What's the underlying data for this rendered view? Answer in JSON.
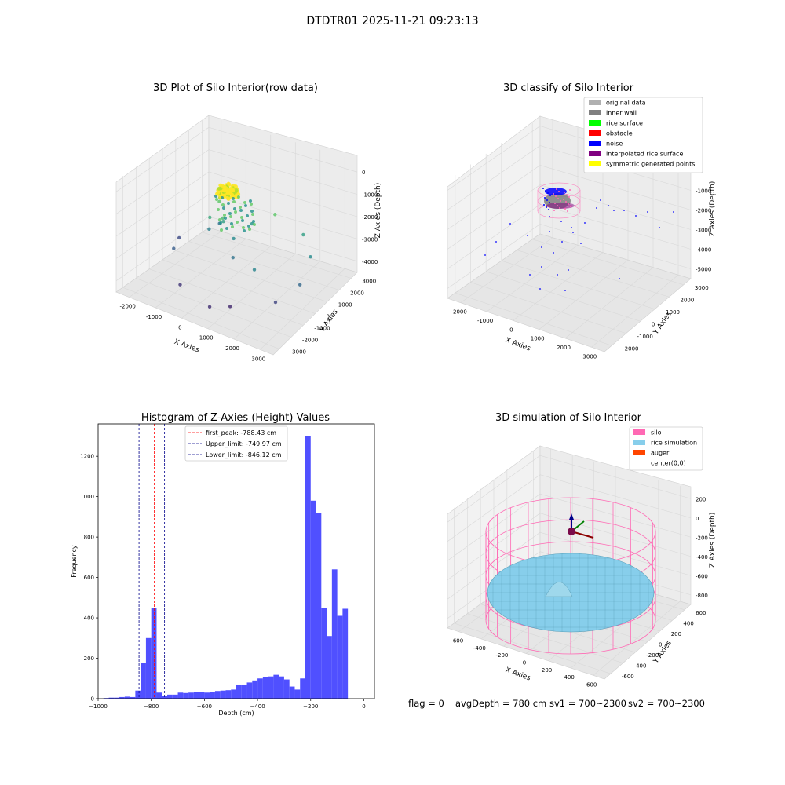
{
  "figure": {
    "suptitle": "DTDTR01 2025-11-21 09:23:13",
    "footer": {
      "flag": "flag = 0",
      "avg_depth": "avgDepth = 780 cm",
      "sv1": "sv1 = 700~2300",
      "sv2": "sv2 = 700~2300"
    }
  },
  "chart_data": [
    {
      "type": "scatter",
      "projection": "3d",
      "title": "3D Plot of Silo Interior(row data)",
      "xlabel": "X Axies",
      "ylabel": "Y Axies",
      "zlabel": "Z Axies (Depth)",
      "xticks": [
        "-2000",
        "-1000",
        "0",
        "1000",
        "2000",
        "3000"
      ],
      "yticks": [
        "-3000",
        "-2000",
        "-1000",
        "0",
        "1000",
        "2000",
        "3000"
      ],
      "zticks": [
        "0",
        "-1000",
        "-2000",
        "-3000",
        "-4000"
      ],
      "xlim": [
        -2500,
        3500
      ],
      "ylim": [
        -3000,
        3500
      ],
      "zlim": [
        -4500,
        0
      ],
      "colormap": "viridis",
      "cluster_note": "dense cluster near x≈-500, y≈0, z≈-1000 (yellow)",
      "points": [
        {
          "x": -300,
          "y": 200,
          "z": -1200
        },
        {
          "x": -500,
          "y": -100,
          "z": -1800
        },
        {
          "x": -200,
          "y": 300,
          "z": -2000
        },
        {
          "x": 100,
          "y": -300,
          "z": -1500
        },
        {
          "x": 300,
          "y": 100,
          "z": -2400
        },
        {
          "x": -800,
          "y": 400,
          "z": -2600
        },
        {
          "x": 600,
          "y": -500,
          "z": -2800
        },
        {
          "x": 1500,
          "y": 800,
          "z": -1200
        },
        {
          "x": 2200,
          "y": 1500,
          "z": -2000
        },
        {
          "x": 2800,
          "y": 900,
          "z": -2400
        },
        {
          "x": 1800,
          "y": -1200,
          "z": -2500
        },
        {
          "x": -1500,
          "y": -800,
          "z": -3200
        },
        {
          "x": -600,
          "y": -2000,
          "z": -3800
        },
        {
          "x": 800,
          "y": -2500,
          "z": -3900
        },
        {
          "x": 2500,
          "y": -1000,
          "z": -3600
        },
        {
          "x": 1200,
          "y": -1800,
          "z": -4000
        },
        {
          "x": -2000,
          "y": 500,
          "z": -3500
        },
        {
          "x": 3000,
          "y": -200,
          "z": -3000
        },
        {
          "x": 400,
          "y": 1200,
          "z": -2200
        },
        {
          "x": -1000,
          "y": 1500,
          "z": -2900
        }
      ]
    },
    {
      "type": "scatter",
      "projection": "3d",
      "title": "3D classify of Silo Interior",
      "xlabel": "X Axies",
      "ylabel": "Y Axies",
      "zlabel": "Z Axies (Depth)",
      "xticks": [
        "-2000",
        "-1000",
        "0",
        "1000",
        "2000",
        "3000"
      ],
      "yticks": [
        "-2000",
        "-1000",
        "0",
        "1000",
        "2000",
        "3000"
      ],
      "zticks": [
        "0",
        "-1000",
        "-2000",
        "-3000",
        "-4000",
        "-5000"
      ],
      "legend_position": "upper-right",
      "legend": [
        {
          "label": "original data",
          "color": "#b0b0b0"
        },
        {
          "label": "inner wall",
          "color": "#808080"
        },
        {
          "label": "rice surface",
          "color": "#00ff00"
        },
        {
          "label": "obstacle",
          "color": "#ff0000"
        },
        {
          "label": "noise",
          "color": "#0000ff"
        },
        {
          "label": "interpolated rice surface",
          "color": "#800080"
        },
        {
          "label": "symmetric generated points",
          "color": "#ffff00"
        }
      ]
    },
    {
      "type": "bar",
      "subtype": "histogram",
      "title": "Histogram of Z-Axies (Height) Values",
      "xlabel": "Depth (cm)",
      "ylabel": "Frequency",
      "xlim": [
        -1000,
        40
      ],
      "ylim": [
        0,
        1360
      ],
      "xticks": [
        -1000,
        -800,
        -600,
        -400,
        -200,
        0
      ],
      "yticks": [
        0,
        200,
        400,
        600,
        800,
        1000,
        1200
      ],
      "bar_color": "#4d4dff",
      "bin_start": -980,
      "bin_width": 20,
      "values": [
        3,
        5,
        5,
        8,
        10,
        8,
        40,
        175,
        300,
        450,
        30,
        15,
        20,
        20,
        30,
        28,
        30,
        32,
        32,
        30,
        35,
        38,
        40,
        42,
        45,
        70,
        70,
        80,
        90,
        100,
        105,
        110,
        118,
        110,
        95,
        60,
        45,
        100,
        1300,
        980,
        920,
        450,
        310,
        640,
        410,
        445
      ],
      "vlines": [
        {
          "label": "first_peak: -788.43 cm",
          "value": -788.43,
          "color": "#ff0000"
        },
        {
          "label": "Upper_limit: -749.97 cm",
          "value": -749.97,
          "color": "#00008b"
        },
        {
          "label": "Lower_limit: -846.12 cm",
          "value": -846.12,
          "color": "#00008b"
        }
      ],
      "legend_position": "top-center"
    },
    {
      "type": "surface",
      "projection": "3d",
      "title": "3D simulation of Silo Interior",
      "xlabel": "X Axies",
      "ylabel": "Y Axies",
      "zlabel": "Z Axies (Depth)",
      "xticks": [
        "-600",
        "-400",
        "-200",
        "0",
        "200",
        "400",
        "600"
      ],
      "yticks": [
        "-600",
        "-400",
        "-200",
        "0",
        "200",
        "400",
        "600"
      ],
      "zticks": [
        "200",
        "0",
        "-200",
        "-400",
        "-600",
        "-800"
      ],
      "legend_position": "upper-right",
      "legend": [
        {
          "label": "silo",
          "color": "#ff69b4"
        },
        {
          "label": "rice simulation",
          "color": "#87ceeb"
        },
        {
          "label": "auger",
          "color": "#ff4500"
        },
        {
          "label": "center(0,0)",
          "color": "#ffffff"
        }
      ]
    }
  ]
}
